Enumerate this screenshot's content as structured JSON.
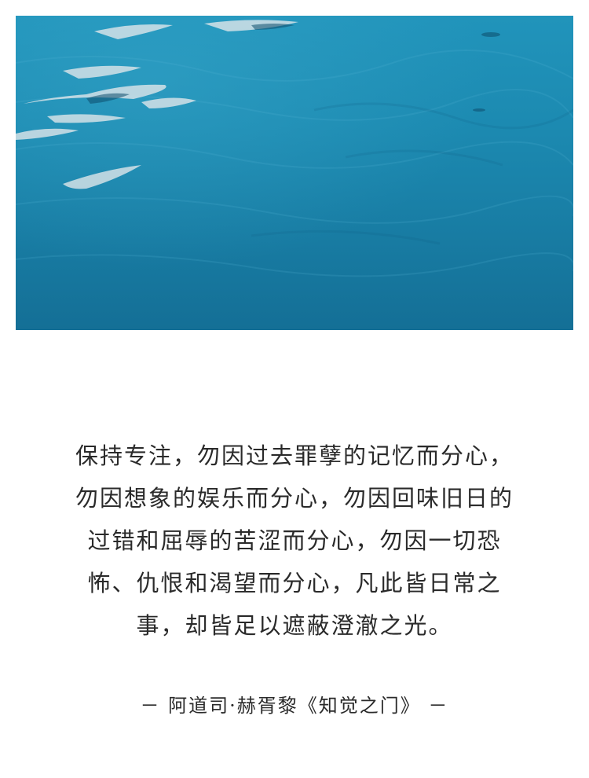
{
  "photo": {
    "subject": "sea-water-surface",
    "colors": {
      "water_light": "#2296bd",
      "water_mid": "#1b86ad",
      "water_deep": "#146e95",
      "reflection": "#dfe6ea"
    }
  },
  "quote": {
    "lines": [
      "保持专注，勿因过去罪孽的记忆而分心，",
      "勿因想象的娱乐而分心，勿因回味旧日的",
      "过错和屈辱的苦涩而分心，勿因一切恐",
      "怖、仇恨和渴望而分心，凡此皆日常之",
      "事，却皆足以遮蔽澄澈之光。"
    ]
  },
  "attribution": {
    "text": "－ 阿道司·赫胥黎《知觉之门》 －"
  }
}
